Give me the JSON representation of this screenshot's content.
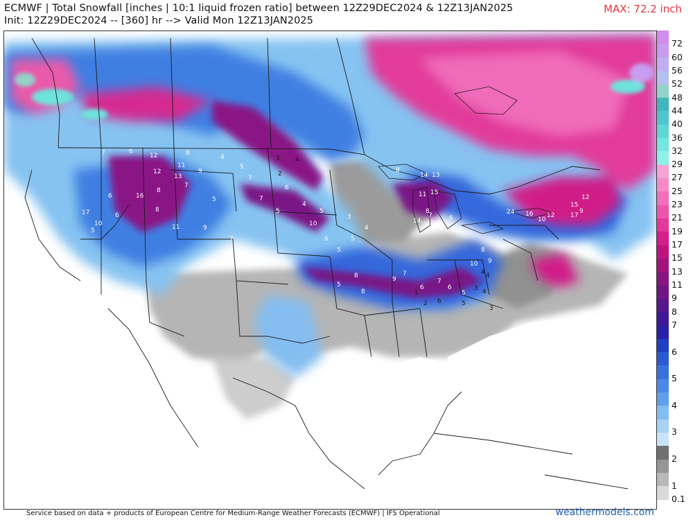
{
  "header": {
    "title_line1": "ECMWF | Total Snowfall [inches | 10:1 liquid frozen ratio] between 12Z29DEC2024 & 12Z13JAN2025",
    "title_line2": "Init: 12Z29DEC2024 -- [360] hr --> Valid Mon 12Z13JAN2025",
    "max_label": "MAX: 72.2 inch"
  },
  "colors": {
    "title": "#111111",
    "max": "#e4343c",
    "brand": "#1f5fb8",
    "border": "#222222"
  },
  "colorbar": {
    "levels": [
      {
        "label": "0.1",
        "color": "#d9d9d9"
      },
      {
        "label": "1",
        "color": "#b8b8b8"
      },
      {
        "label": "",
        "color": "#969696"
      },
      {
        "label": "2",
        "color": "#707070"
      },
      {
        "label": "",
        "color": "#c8e4f7"
      },
      {
        "label": "3",
        "color": "#a9d3f4"
      },
      {
        "label": "",
        "color": "#84bdf0"
      },
      {
        "label": "4",
        "color": "#609fea"
      },
      {
        "label": "",
        "color": "#4a89e6"
      },
      {
        "label": "5",
        "color": "#3a72dd"
      },
      {
        "label": "",
        "color": "#2c5ad2"
      },
      {
        "label": "6",
        "color": "#2140c1"
      },
      {
        "label": "",
        "color": "#2a20a8"
      },
      {
        "label": "7",
        "color": "#3d1996"
      },
      {
        "label": "8",
        "color": "#55188e"
      },
      {
        "label": "9",
        "color": "#6f1686"
      },
      {
        "label": "11",
        "color": "#88147e"
      },
      {
        "label": "13",
        "color": "#a1157a"
      },
      {
        "label": "15",
        "color": "#bd1580"
      },
      {
        "label": "17",
        "color": "#d41f8d"
      },
      {
        "label": "19",
        "color": "#e4389c"
      },
      {
        "label": "21",
        "color": "#ec55ac"
      },
      {
        "label": "23",
        "color": "#f270bb"
      },
      {
        "label": "25",
        "color": "#f58ac9"
      },
      {
        "label": "27",
        "color": "#f5a4d5"
      },
      {
        "label": "29",
        "color": "#8ff0e8"
      },
      {
        "label": "32",
        "color": "#74e6e0"
      },
      {
        "label": "36",
        "color": "#5ed7d6"
      },
      {
        "label": "40",
        "color": "#4ec6cc"
      },
      {
        "label": "44",
        "color": "#42b4bd"
      },
      {
        "label": "48",
        "color": "#95d1c9"
      },
      {
        "label": "52",
        "color": "#b6c0f0"
      },
      {
        "label": "56",
        "color": "#c1aef2"
      },
      {
        "label": "60",
        "color": "#c99cf0"
      },
      {
        "label": "72",
        "color": "#cf8ded"
      }
    ]
  },
  "map": {
    "point_labels": [
      {
        "t": "7"
      },
      {
        "t": "6"
      },
      {
        "t": "12"
      },
      {
        "t": "8"
      },
      {
        "t": "11"
      },
      {
        "t": "9"
      },
      {
        "t": "13"
      },
      {
        "t": "7"
      },
      {
        "t": "16"
      },
      {
        "t": "8"
      },
      {
        "t": "6"
      },
      {
        "t": "12"
      },
      {
        "t": "5"
      },
      {
        "t": "17"
      },
      {
        "t": "10"
      },
      {
        "t": "6"
      },
      {
        "t": "11"
      },
      {
        "t": "5"
      },
      {
        "t": "8"
      },
      {
        "t": "9"
      },
      {
        "t": "4"
      },
      {
        "t": "5"
      },
      {
        "t": "7"
      },
      {
        "t": "12"
      },
      {
        "t": "7"
      },
      {
        "t": "3"
      },
      {
        "t": "4"
      },
      {
        "t": "2"
      },
      {
        "t": "6"
      },
      {
        "t": "7"
      },
      {
        "t": "5"
      },
      {
        "t": "10"
      },
      {
        "t": "6"
      },
      {
        "t": "5"
      },
      {
        "t": "4"
      },
      {
        "t": "5"
      },
      {
        "t": "3"
      },
      {
        "t": "4"
      },
      {
        "t": "5"
      },
      {
        "t": "8"
      },
      {
        "t": "9"
      },
      {
        "t": "7"
      },
      {
        "t": "8"
      },
      {
        "t": "5"
      },
      {
        "t": "6"
      },
      {
        "t": "7"
      },
      {
        "t": "6"
      },
      {
        "t": "5"
      },
      {
        "t": "4"
      },
      {
        "t": "3"
      },
      {
        "t": "8"
      },
      {
        "t": "14"
      },
      {
        "t": "13"
      },
      {
        "t": "11"
      },
      {
        "t": "15"
      },
      {
        "t": "8"
      },
      {
        "t": "14"
      },
      {
        "t": "7"
      },
      {
        "t": "12"
      },
      {
        "t": "6"
      },
      {
        "t": "24"
      },
      {
        "t": "16"
      },
      {
        "t": "10"
      },
      {
        "t": "12"
      },
      {
        "t": "15"
      },
      {
        "t": "9"
      },
      {
        "t": "17"
      },
      {
        "t": "12"
      },
      {
        "t": "8"
      },
      {
        "t": "9"
      },
      {
        "t": "10"
      },
      {
        "t": "4"
      },
      {
        "t": "6"
      },
      {
        "t": "2"
      },
      {
        "t": "1"
      },
      {
        "t": "3"
      },
      {
        "t": "5"
      },
      {
        "t": "4"
      }
    ]
  },
  "footer": {
    "credit": "Service based on data + products of European Centre for Medium-Range Weather Forecasts (ECMWF) | IFS Operational",
    "brand": "weathermodels.com"
  }
}
